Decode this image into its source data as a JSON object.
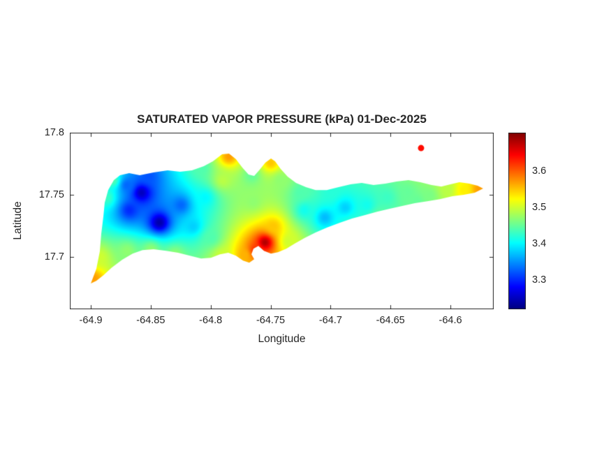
{
  "colors": {
    "background": "#ffffff",
    "text": "#262626",
    "axis": "#262626"
  },
  "chart_data": {
    "type": "heatmap",
    "title": "SATURATED VAPOR PRESSURE (kPa) 01-Dec-2025",
    "xlabel": "Longitude",
    "ylabel": "Latitude",
    "colormap": "jet",
    "grid": false,
    "legend": "colorbar-right",
    "x_range": [
      -64.9175,
      -64.5639
    ],
    "y_range": [
      17.658,
      17.8
    ],
    "x_ticks": [
      -64.9,
      -64.85,
      -64.8,
      -64.75,
      -64.7,
      -64.65,
      -64.6
    ],
    "x_tick_labels": [
      "-64.9",
      "-64.85",
      "-64.8",
      "-64.75",
      "-64.7",
      "-64.65",
      "-64.6"
    ],
    "y_ticks": [
      17.8,
      17.75,
      17.7
    ],
    "y_tick_labels": [
      "17.8",
      "17.75",
      "17.7"
    ],
    "value_range": [
      3.22,
      3.705
    ],
    "colorbar_ticks": [
      3.3,
      3.4,
      3.5,
      3.6
    ],
    "colorbar_tick_labels": [
      "3.3",
      "3.4",
      "3.5",
      "3.6"
    ],
    "region": "island-outline",
    "island_polygon": [
      [
        -64.9,
        17.6787
      ],
      [
        -64.8954,
        17.6904
      ],
      [
        -64.8925,
        17.7045
      ],
      [
        -64.8913,
        17.7185
      ],
      [
        -64.8895,
        17.7326
      ],
      [
        -64.8884,
        17.7438
      ],
      [
        -64.8855,
        17.7539
      ],
      [
        -64.8808,
        17.7618
      ],
      [
        -64.8756,
        17.7657
      ],
      [
        -64.868,
        17.7674
      ],
      [
        -64.8592,
        17.7657
      ],
      [
        -64.8476,
        17.768
      ],
      [
        -64.8359,
        17.7697
      ],
      [
        -64.8255,
        17.7685
      ],
      [
        -64.8156,
        17.7697
      ],
      [
        -64.8057,
        17.773
      ],
      [
        -64.7981,
        17.777
      ],
      [
        -64.7905,
        17.7826
      ],
      [
        -64.7847,
        17.7831
      ],
      [
        -64.7789,
        17.7787
      ],
      [
        -64.7736,
        17.7719
      ],
      [
        -64.7684,
        17.7663
      ],
      [
        -64.7637,
        17.7652
      ],
      [
        -64.7591,
        17.7702
      ],
      [
        -64.7544,
        17.7758
      ],
      [
        -64.7497,
        17.7792
      ],
      [
        -64.7463,
        17.777
      ],
      [
        -64.7416,
        17.7708
      ],
      [
        -64.7358,
        17.7646
      ],
      [
        -64.7288,
        17.7596
      ],
      [
        -64.7206,
        17.7562
      ],
      [
        -64.7125,
        17.7539
      ],
      [
        -64.7031,
        17.7539
      ],
      [
        -64.6932,
        17.7562
      ],
      [
        -64.6833,
        17.7584
      ],
      [
        -64.674,
        17.7596
      ],
      [
        -64.6641,
        17.7579
      ],
      [
        -64.6542,
        17.759
      ],
      [
        -64.6449,
        17.7607
      ],
      [
        -64.635,
        17.7618
      ],
      [
        -64.6251,
        17.7601
      ],
      [
        -64.6158,
        17.7579
      ],
      [
        -64.6076,
        17.7567
      ],
      [
        -64.6,
        17.7584
      ],
      [
        -64.5925,
        17.7601
      ],
      [
        -64.5843,
        17.759
      ],
      [
        -64.5773,
        17.7573
      ],
      [
        -64.5727,
        17.7551
      ],
      [
        -64.5797,
        17.7517
      ],
      [
        -64.589,
        17.75
      ],
      [
        -64.5983,
        17.7489
      ],
      [
        -64.6088,
        17.7466
      ],
      [
        -64.6193,
        17.7449
      ],
      [
        -64.6297,
        17.7433
      ],
      [
        -64.6402,
        17.741
      ],
      [
        -64.6507,
        17.7388
      ],
      [
        -64.6612,
        17.7365
      ],
      [
        -64.6717,
        17.7337
      ],
      [
        -64.6821,
        17.7309
      ],
      [
        -64.6926,
        17.7275
      ],
      [
        -64.7031,
        17.7236
      ],
      [
        -64.7125,
        17.7197
      ],
      [
        -64.7218,
        17.7152
      ],
      [
        -64.73,
        17.7107
      ],
      [
        -64.7369,
        17.7067
      ],
      [
        -64.7439,
        17.7039
      ],
      [
        -64.7497,
        17.7028
      ],
      [
        -64.7556,
        17.705
      ],
      [
        -64.7602,
        17.709
      ],
      [
        -64.7643,
        17.7067
      ],
      [
        -64.766,
        17.7022
      ],
      [
        -64.7637,
        17.6983
      ],
      [
        -64.7678,
        17.6955
      ],
      [
        -64.773,
        17.6972
      ],
      [
        -64.7789,
        17.7011
      ],
      [
        -64.7853,
        17.7034
      ],
      [
        -64.7922,
        17.7022
      ],
      [
        -64.7998,
        17.6994
      ],
      [
        -64.808,
        17.6989
      ],
      [
        -64.8173,
        17.7011
      ],
      [
        -64.8272,
        17.7034
      ],
      [
        -64.8371,
        17.705
      ],
      [
        -64.8476,
        17.7062
      ],
      [
        -64.8569,
        17.7056
      ],
      [
        -64.8651,
        17.7028
      ],
      [
        -64.8738,
        17.6978
      ],
      [
        -64.8825,
        17.6916
      ],
      [
        -64.8895,
        17.6854
      ],
      [
        -64.8954,
        17.6809
      ]
    ],
    "islets": [
      {
        "lon": -64.6245,
        "lat": 17.7876,
        "radius_px": 4.5
      }
    ],
    "samples": [
      [
        -64.858,
        17.752,
        3.25
      ],
      [
        -64.843,
        17.728,
        3.24
      ],
      [
        -64.868,
        17.738,
        3.3
      ],
      [
        -64.852,
        17.765,
        3.32
      ],
      [
        -64.825,
        17.742,
        3.33
      ],
      [
        -64.815,
        17.725,
        3.38
      ],
      [
        -64.87,
        17.758,
        3.33
      ],
      [
        -64.887,
        17.748,
        3.43
      ],
      [
        -64.882,
        17.762,
        3.44
      ],
      [
        -64.893,
        17.7,
        3.5
      ],
      [
        -64.898,
        17.683,
        3.57
      ],
      [
        -64.87,
        17.705,
        3.47
      ],
      [
        -64.85,
        17.706,
        3.47
      ],
      [
        -64.83,
        17.702,
        3.47
      ],
      [
        -64.8,
        17.716,
        3.44
      ],
      [
        -64.805,
        17.748,
        3.4
      ],
      [
        -64.79,
        17.762,
        3.49
      ],
      [
        -64.785,
        17.781,
        3.57
      ],
      [
        -64.808,
        17.772,
        3.44
      ],
      [
        -64.765,
        17.745,
        3.47
      ],
      [
        -64.766,
        17.766,
        3.45
      ],
      [
        -64.755,
        17.712,
        3.68
      ],
      [
        -64.763,
        17.706,
        3.62
      ],
      [
        -64.748,
        17.725,
        3.55
      ],
      [
        -64.772,
        17.702,
        3.56
      ],
      [
        -64.79,
        17.701,
        3.5
      ],
      [
        -64.735,
        17.713,
        3.5
      ],
      [
        -64.75,
        17.776,
        3.55
      ],
      [
        -64.742,
        17.762,
        3.47
      ],
      [
        -64.722,
        17.738,
        3.41
      ],
      [
        -64.705,
        17.732,
        3.37
      ],
      [
        -64.688,
        17.74,
        3.38
      ],
      [
        -64.67,
        17.742,
        3.41
      ],
      [
        -64.7,
        17.752,
        3.42
      ],
      [
        -64.725,
        17.752,
        3.44
      ],
      [
        -64.653,
        17.748,
        3.43
      ],
      [
        -64.636,
        17.752,
        3.45
      ],
      [
        -64.618,
        17.75,
        3.46
      ],
      [
        -64.603,
        17.755,
        3.49
      ],
      [
        -64.589,
        17.754,
        3.53
      ],
      [
        -64.576,
        17.755,
        3.57
      ],
      [
        -64.66,
        17.733,
        3.45
      ],
      [
        -64.628,
        17.745,
        3.45
      ],
      [
        -64.6245,
        17.7876,
        3.64
      ],
      [
        -64.682,
        17.727,
        3.42
      ]
    ]
  }
}
